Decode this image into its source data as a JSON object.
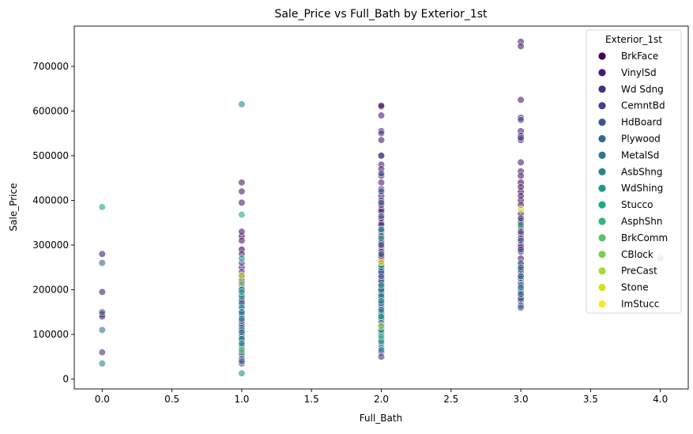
{
  "chart_data": {
    "type": "scatter",
    "title": "Sale_Price vs Full_Bath by Exterior_1st",
    "xlabel": "Full_Bath",
    "ylabel": "Sale_Price",
    "xlim": [
      -0.2,
      4.2
    ],
    "ylim": [
      -22000,
      790000
    ],
    "xticks": [
      0.0,
      0.5,
      1.0,
      1.5,
      2.0,
      2.5,
      3.0,
      3.5,
      4.0
    ],
    "xtick_labels": [
      "0.0",
      "0.5",
      "1.0",
      "1.5",
      "2.0",
      "2.5",
      "3.0",
      "3.5",
      "4.0"
    ],
    "yticks": [
      0,
      100000,
      200000,
      300000,
      400000,
      500000,
      600000,
      700000
    ],
    "ytick_labels": [
      "0",
      "100000",
      "200000",
      "300000",
      "400000",
      "500000",
      "600000",
      "700000"
    ],
    "grid": false,
    "legend": {
      "title": "Exterior_1st",
      "placement": "top-right",
      "entries": [
        {
          "name": "BrkFace",
          "color": "#440154"
        },
        {
          "name": "VinylSd",
          "color": "#481a6c"
        },
        {
          "name": "Wd Sdng",
          "color": "#472f7d"
        },
        {
          "name": "CemntBd",
          "color": "#414487"
        },
        {
          "name": "HdBoard",
          "color": "#39568c"
        },
        {
          "name": "Plywood",
          "color": "#31688e"
        },
        {
          "name": "MetalSd",
          "color": "#2a788e"
        },
        {
          "name": "AsbShng",
          "color": "#23888e"
        },
        {
          "name": "WdShing",
          "color": "#1f988b"
        },
        {
          "name": "Stucco",
          "color": "#22a884"
        },
        {
          "name": "AsphShn",
          "color": "#35b779"
        },
        {
          "name": "BrkComm",
          "color": "#54c568"
        },
        {
          "name": "CBlock",
          "color": "#7ad151"
        },
        {
          "name": "PreCast",
          "color": "#a5db36"
        },
        {
          "name": "Stone",
          "color": "#d2e21b"
        },
        {
          "name": "ImStucc",
          "color": "#fde725"
        }
      ]
    },
    "series": [
      {
        "name": "BrkFace",
        "points": [
          [
            0,
            145000
          ],
          [
            1,
            290000
          ],
          [
            1,
            230000
          ],
          [
            1,
            180000
          ],
          [
            1,
            320000
          ],
          [
            2,
            610000
          ],
          [
            2,
            380000
          ],
          [
            2,
            350000
          ],
          [
            2,
            310000
          ],
          [
            2,
            270000
          ],
          [
            2,
            240000
          ],
          [
            2,
            210000
          ],
          [
            2,
            170000
          ],
          [
            3,
            440000
          ],
          [
            3,
            420000
          ],
          [
            3,
            400000
          ],
          [
            3,
            340000
          ],
          [
            3,
            300000
          ],
          [
            3,
            240000
          ]
        ]
      },
      {
        "name": "VinylSd",
        "points": [
          [
            0,
            195000
          ],
          [
            0,
            280000
          ],
          [
            1,
            440000
          ],
          [
            1,
            420000
          ],
          [
            1,
            395000
          ],
          [
            1,
            330000
          ],
          [
            1,
            310000
          ],
          [
            1,
            280000
          ],
          [
            1,
            250000
          ],
          [
            1,
            220000
          ],
          [
            1,
            200000
          ],
          [
            1,
            175000
          ],
          [
            1,
            150000
          ],
          [
            1,
            125000
          ],
          [
            2,
            612000
          ],
          [
            2,
            590000
          ],
          [
            2,
            555000
          ],
          [
            2,
            535000
          ],
          [
            2,
            500000
          ],
          [
            2,
            480000
          ],
          [
            2,
            470000
          ],
          [
            2,
            455000
          ],
          [
            2,
            440000
          ],
          [
            2,
            425000
          ],
          [
            2,
            410000
          ],
          [
            2,
            400000
          ],
          [
            2,
            390000
          ],
          [
            2,
            375000
          ],
          [
            2,
            360000
          ],
          [
            2,
            345000
          ],
          [
            2,
            330000
          ],
          [
            2,
            320000
          ],
          [
            2,
            305000
          ],
          [
            2,
            295000
          ],
          [
            2,
            285000
          ],
          [
            2,
            275000
          ],
          [
            2,
            265000
          ],
          [
            2,
            255000
          ],
          [
            2,
            245000
          ],
          [
            2,
            235000
          ],
          [
            2,
            225000
          ],
          [
            2,
            215000
          ],
          [
            2,
            205000
          ],
          [
            2,
            195000
          ],
          [
            2,
            185000
          ],
          [
            2,
            175000
          ],
          [
            3,
            755000
          ],
          [
            3,
            745000
          ],
          [
            3,
            625000
          ],
          [
            3,
            585000
          ],
          [
            3,
            555000
          ],
          [
            3,
            545000
          ],
          [
            3,
            535000
          ],
          [
            3,
            485000
          ],
          [
            3,
            465000
          ],
          [
            3,
            455000
          ],
          [
            3,
            430000
          ],
          [
            3,
            410000
          ],
          [
            3,
            390000
          ],
          [
            3,
            370000
          ],
          [
            3,
            355000
          ],
          [
            3,
            350000
          ],
          [
            3,
            325000
          ],
          [
            3,
            315000
          ],
          [
            3,
            295000
          ],
          [
            3,
            285000
          ],
          [
            3,
            270000
          ],
          [
            3,
            255000
          ],
          [
            3,
            230000
          ],
          [
            3,
            215000
          ]
        ]
      },
      {
        "name": "Wd Sdng",
        "points": [
          [
            0,
            60000
          ],
          [
            0,
            140000
          ],
          [
            1,
            120000
          ],
          [
            1,
            100000
          ],
          [
            1,
            85000
          ],
          [
            1,
            70000
          ],
          [
            1,
            55000
          ],
          [
            1,
            45000
          ],
          [
            1,
            35000
          ],
          [
            2,
            160000
          ],
          [
            2,
            145000
          ],
          [
            2,
            130000
          ],
          [
            2,
            115000
          ],
          [
            2,
            100000
          ],
          [
            2,
            80000
          ],
          [
            2,
            60000
          ],
          [
            2,
            50000
          ],
          [
            3,
            200000
          ],
          [
            3,
            185000
          ],
          [
            3,
            175000
          ]
        ]
      },
      {
        "name": "CemntBd",
        "points": [
          [
            1,
            260000
          ],
          [
            1,
            240000
          ],
          [
            2,
            550000
          ],
          [
            2,
            500000
          ],
          [
            2,
            460000
          ],
          [
            3,
            580000
          ],
          [
            3,
            540000
          ],
          [
            3,
            360000
          ],
          [
            3,
            330000
          ],
          [
            4,
            270000
          ]
        ]
      },
      {
        "name": "HdBoard",
        "points": [
          [
            0,
            150000
          ],
          [
            1,
            210000
          ],
          [
            1,
            190000
          ],
          [
            1,
            165000
          ],
          [
            1,
            140000
          ],
          [
            1,
            115000
          ],
          [
            1,
            95000
          ],
          [
            2,
            420000
          ],
          [
            2,
            395000
          ],
          [
            2,
            365000
          ],
          [
            2,
            335000
          ],
          [
            2,
            300000
          ],
          [
            2,
            280000
          ],
          [
            2,
            260000
          ],
          [
            2,
            240000
          ],
          [
            2,
            220000
          ],
          [
            2,
            200000
          ],
          [
            2,
            180000
          ],
          [
            2,
            165000
          ],
          [
            2,
            150000
          ],
          [
            2,
            135000
          ],
          [
            3,
            310000
          ],
          [
            3,
            290000
          ],
          [
            3,
            260000
          ],
          [
            3,
            245000
          ],
          [
            3,
            225000
          ],
          [
            3,
            195000
          ],
          [
            3,
            180000
          ],
          [
            3,
            165000
          ],
          [
            3,
            160000
          ]
        ]
      },
      {
        "name": "Plywood",
        "points": [
          [
            0,
            260000
          ],
          [
            1,
            200000
          ],
          [
            1,
            170000
          ],
          [
            1,
            145000
          ],
          [
            1,
            130000
          ],
          [
            1,
            110000
          ],
          [
            2,
            250000
          ],
          [
            2,
            230000
          ],
          [
            2,
            190000
          ],
          [
            2,
            170000
          ],
          [
            2,
            140000
          ],
          [
            2,
            125000
          ],
          [
            3,
            250000
          ],
          [
            3,
            210000
          ],
          [
            3,
            190000
          ]
        ]
      },
      {
        "name": "MetalSd",
        "points": [
          [
            0,
            110000
          ],
          [
            1,
            160000
          ],
          [
            1,
            135000
          ],
          [
            1,
            105000
          ],
          [
            1,
            90000
          ],
          [
            1,
            75000
          ],
          [
            1,
            60000
          ],
          [
            1,
            40000
          ],
          [
            2,
            200000
          ],
          [
            2,
            185000
          ],
          [
            2,
            155000
          ],
          [
            2,
            120000
          ],
          [
            2,
            105000
          ],
          [
            2,
            90000
          ],
          [
            2,
            70000
          ],
          [
            3,
            230000
          ],
          [
            3,
            205000
          ]
        ]
      },
      {
        "name": "AsbShng",
        "points": [
          [
            0,
            35000
          ],
          [
            1,
            615000
          ],
          [
            1,
            150000
          ],
          [
            1,
            80000
          ],
          [
            1,
            13000
          ],
          [
            2,
            110000
          ],
          [
            2,
            85000
          ],
          [
            2,
            65000
          ]
        ]
      },
      {
        "name": "WdShing",
        "points": [
          [
            1,
            270000
          ],
          [
            1,
            185000
          ],
          [
            2,
            335000
          ],
          [
            2,
            210000
          ],
          [
            2,
            175000
          ]
        ]
      },
      {
        "name": "Stucco",
        "points": [
          [
            0,
            385000
          ],
          [
            1,
            368000
          ],
          [
            1,
            195000
          ],
          [
            2,
            315000
          ],
          [
            2,
            255000
          ],
          [
            2,
            140000
          ],
          [
            3,
            345000
          ]
        ]
      },
      {
        "name": "AsphShn",
        "points": [
          [
            2,
            95000
          ]
        ]
      },
      {
        "name": "BrkComm",
        "points": [
          [
            1,
            65000
          ]
        ]
      },
      {
        "name": "CBlock",
        "points": [
          [
            1,
            215000
          ]
        ]
      },
      {
        "name": "PreCast",
        "points": [
          [
            2,
            118000
          ]
        ]
      },
      {
        "name": "Stone",
        "points": [
          [
            1,
            232000
          ],
          [
            3,
            380000
          ]
        ]
      },
      {
        "name": "ImStucc",
        "points": [
          [
            2,
            262000
          ]
        ]
      }
    ]
  }
}
